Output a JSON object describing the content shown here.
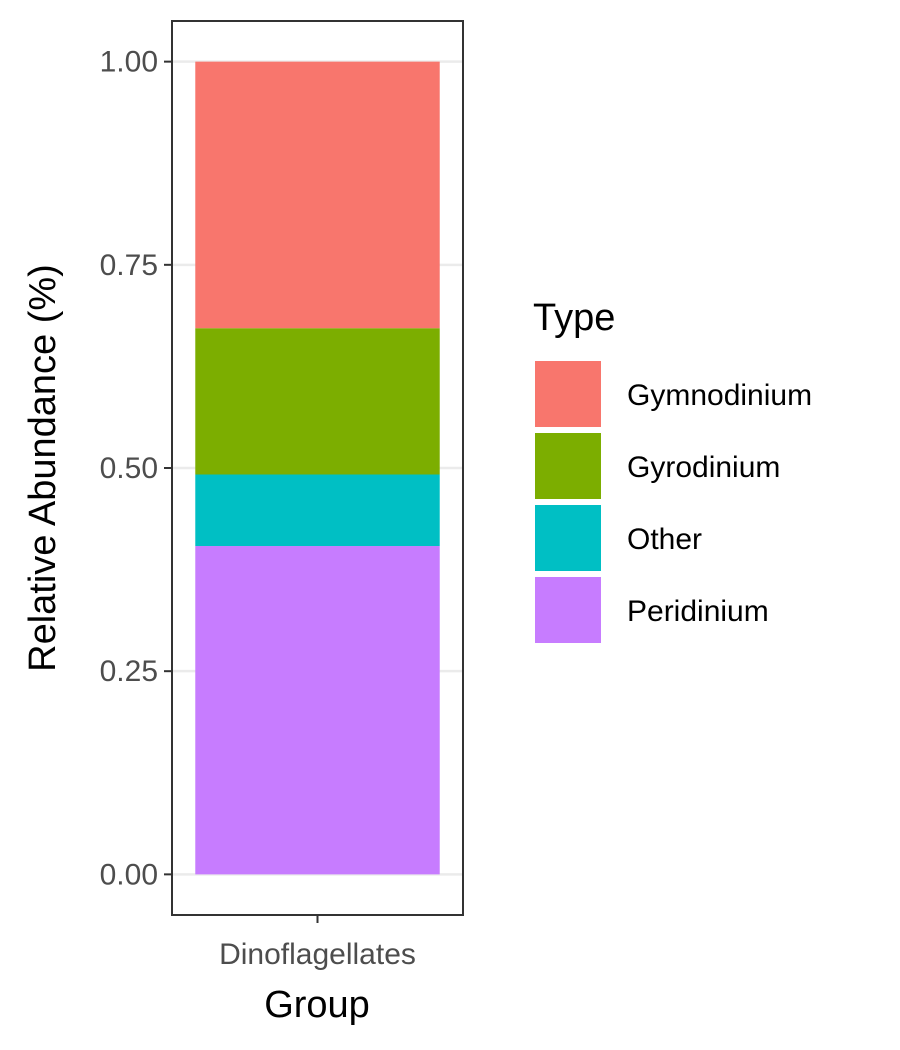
{
  "chart_data": {
    "type": "bar",
    "stacked": true,
    "categories": [
      "Dinoflagellates"
    ],
    "series": [
      {
        "name": "Peridinium",
        "values": [
          0.404
        ],
        "color": "#C77CFF"
      },
      {
        "name": "Other",
        "values": [
          0.088
        ],
        "color": "#00BFC4"
      },
      {
        "name": "Gyrodinium",
        "values": [
          0.18
        ],
        "color": "#7CAE00"
      },
      {
        "name": "Gymnodinium",
        "values": [
          0.328
        ],
        "color": "#F8766D"
      }
    ],
    "xlabel": "Group",
    "ylabel": "Relative Abundance (%)",
    "ylim": [
      -0.05,
      1.05
    ],
    "yticks": [
      0,
      0.25,
      0.5,
      0.75,
      1.0
    ],
    "ytick_labels": [
      "0.00",
      "0.25",
      "0.50",
      "0.75",
      "1.00"
    ],
    "grid": "horizontal-major",
    "legend": {
      "title": "Type",
      "position": "right",
      "entries": [
        "Gymnodinium",
        "Gyrodinium",
        "Other",
        "Peridinium"
      ]
    }
  }
}
